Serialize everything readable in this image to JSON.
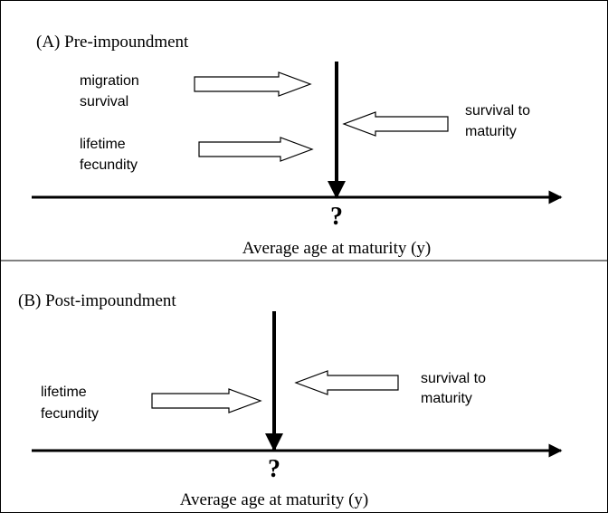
{
  "panels": [
    {
      "title": "(A) Pre-impoundment",
      "labels": [
        [
          "migration",
          "survival"
        ],
        [
          "lifetime",
          "fecundity"
        ],
        [
          "survival to",
          "maturity"
        ]
      ],
      "marker": "?",
      "axis_label": "Average age at maturity (y)"
    },
    {
      "title": "(B) Post-impoundment",
      "labels": [
        [
          "lifetime",
          "fecundity"
        ],
        [
          "survival to",
          "maturity"
        ]
      ],
      "marker": "?",
      "axis_label": "Average age at maturity (y)"
    }
  ]
}
